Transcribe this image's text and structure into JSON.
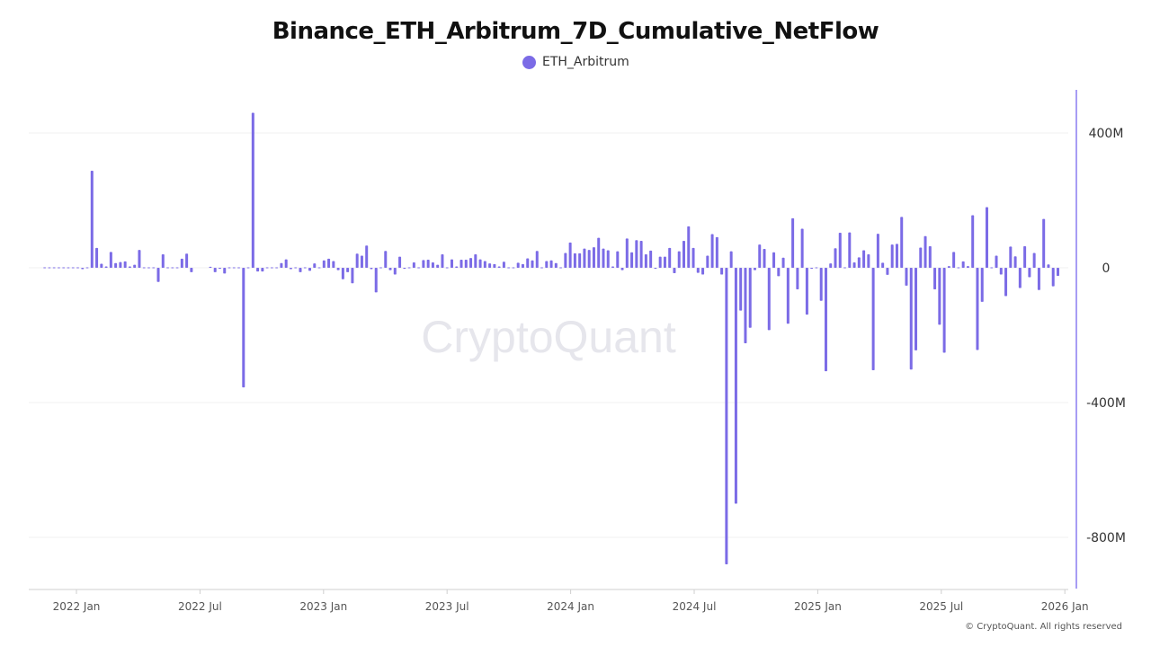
{
  "title": "Binance_ETH_Arbitrum_7D_Cumulative_NetFlow",
  "footer": "© CryptoQuant. All rights reserved",
  "watermark": "CryptoQuant",
  "colors": {
    "series": "#7b6be6",
    "axis": "#8a7cf0",
    "grid": "#f2f2f2"
  },
  "chart_data": {
    "type": "bar",
    "title": "Binance_ETH_Arbitrum_7D_Cumulative_NetFlow",
    "legend": {
      "placement": "top-center",
      "entries": [
        "ETH_Arbitrum"
      ]
    },
    "xlabel": "",
    "ylabel": "",
    "y_unit": "M",
    "ylim": [
      -950,
      530
    ],
    "grid": true,
    "y_axis_side": "right",
    "x_tick_labels": [
      "2022 Jan",
      "2022 Jul",
      "2023 Jan",
      "2023 Jul",
      "2024 Jan",
      "2024 Jul",
      "2025 Jan",
      "2025 Jul",
      "2026 Jan"
    ],
    "y_ticks": [
      400,
      0,
      -400,
      -800
    ],
    "y_tick_labels": [
      "400M",
      "0",
      "-400M",
      "-800M"
    ],
    "x": [
      "2021-11-15",
      "2021-11-22",
      "2021-11-29",
      "2021-12-06",
      "2021-12-13",
      "2021-12-20",
      "2021-12-27",
      "2022-01-03",
      "2022-01-10",
      "2022-01-17",
      "2022-01-24",
      "2022-01-31",
      "2022-02-07",
      "2022-02-14",
      "2022-02-21",
      "2022-02-28",
      "2022-03-07",
      "2022-03-14",
      "2022-03-21",
      "2022-03-28",
      "2022-04-04",
      "2022-04-11",
      "2022-04-18",
      "2022-04-25",
      "2022-05-02",
      "2022-05-09",
      "2022-05-16",
      "2022-05-23",
      "2022-05-30",
      "2022-06-06",
      "2022-06-13",
      "2022-06-20",
      "2022-06-27",
      "2022-07-04",
      "2022-07-11",
      "2022-07-18",
      "2022-07-25",
      "2022-08-01",
      "2022-08-08",
      "2022-08-15",
      "2022-08-22",
      "2022-08-29",
      "2022-09-05",
      "2022-09-12",
      "2022-09-19",
      "2022-09-26",
      "2022-10-03",
      "2022-10-10",
      "2022-10-17",
      "2022-10-24",
      "2022-10-31",
      "2022-11-07",
      "2022-11-14",
      "2022-11-21",
      "2022-11-28",
      "2022-12-05",
      "2022-12-12",
      "2022-12-19",
      "2022-12-26",
      "2023-01-02",
      "2023-01-09",
      "2023-01-16",
      "2023-01-23",
      "2023-01-30",
      "2023-02-06",
      "2023-02-13",
      "2023-02-20",
      "2023-02-27",
      "2023-03-06",
      "2023-03-13",
      "2023-03-20",
      "2023-03-27",
      "2023-04-03",
      "2023-04-10",
      "2023-04-17",
      "2023-04-24",
      "2023-05-01",
      "2023-05-08",
      "2023-05-15",
      "2023-05-22",
      "2023-05-29",
      "2023-06-05",
      "2023-06-12",
      "2023-06-19",
      "2023-06-26",
      "2023-07-03",
      "2023-07-10",
      "2023-07-17",
      "2023-07-24",
      "2023-07-31",
      "2023-08-07",
      "2023-08-14",
      "2023-08-21",
      "2023-08-28",
      "2023-09-04",
      "2023-09-11",
      "2023-09-18",
      "2023-09-25",
      "2023-10-02",
      "2023-10-09",
      "2023-10-16",
      "2023-10-23",
      "2023-10-30",
      "2023-11-06",
      "2023-11-13",
      "2023-11-20",
      "2023-11-27",
      "2023-12-04",
      "2023-12-11",
      "2023-12-18",
      "2023-12-25",
      "2024-01-01",
      "2024-01-08",
      "2024-01-15",
      "2024-01-22",
      "2024-01-29",
      "2024-02-05",
      "2024-02-12",
      "2024-02-19",
      "2024-02-26",
      "2024-03-04",
      "2024-03-11",
      "2024-03-18",
      "2024-03-25",
      "2024-04-01",
      "2024-04-08",
      "2024-04-15",
      "2024-04-22",
      "2024-04-29",
      "2024-05-06",
      "2024-05-13",
      "2024-05-20",
      "2024-05-27",
      "2024-06-03",
      "2024-06-10",
      "2024-06-17",
      "2024-06-24",
      "2024-07-01",
      "2024-07-08",
      "2024-07-15",
      "2024-07-22",
      "2024-07-29",
      "2024-08-05",
      "2024-08-12",
      "2024-08-19",
      "2024-08-26",
      "2024-09-02",
      "2024-09-09",
      "2024-09-16",
      "2024-09-23",
      "2024-09-30",
      "2024-10-07",
      "2024-10-14",
      "2024-10-21",
      "2024-10-28",
      "2024-11-04",
      "2024-11-11",
      "2024-11-18",
      "2024-11-25",
      "2024-12-02",
      "2024-12-09",
      "2024-12-16",
      "2024-12-23",
      "2024-12-30",
      "2025-01-06",
      "2025-01-13",
      "2025-01-20",
      "2025-01-27",
      "2025-02-03",
      "2025-02-10",
      "2025-02-17",
      "2025-02-24",
      "2025-03-03",
      "2025-03-10",
      "2025-03-17",
      "2025-03-24",
      "2025-03-31",
      "2025-04-07",
      "2025-04-14",
      "2025-04-21",
      "2025-04-28",
      "2025-05-05",
      "2025-05-12",
      "2025-05-19",
      "2025-05-26",
      "2025-06-02",
      "2025-06-09",
      "2025-06-16",
      "2025-06-23",
      "2025-06-30",
      "2025-07-07",
      "2025-07-14",
      "2025-07-21",
      "2025-07-28",
      "2025-08-04",
      "2025-08-11",
      "2025-08-18",
      "2025-08-25",
      "2025-09-01",
      "2025-09-08",
      "2025-09-15",
      "2025-09-22",
      "2025-09-29",
      "2025-10-06",
      "2025-10-13",
      "2025-10-20",
      "2025-10-27",
      "2025-11-03",
      "2025-11-10",
      "2025-11-17",
      "2025-11-24",
      "2025-12-01",
      "2025-12-08",
      "2025-12-15",
      "2025-12-22"
    ],
    "series": [
      {
        "name": "ETH_Arbitrum",
        "values": [
          0,
          0,
          0,
          0,
          0,
          0,
          0,
          2,
          -4,
          0,
          288,
          59,
          12,
          4,
          47,
          14,
          17,
          19,
          4,
          9,
          53,
          2,
          0,
          0,
          -42,
          40,
          0,
          -2,
          2,
          27,
          42,
          -13,
          null,
          null,
          null,
          3,
          -13,
          -3,
          -17,
          0,
          0,
          0,
          -355,
          0,
          460,
          -11,
          -11,
          0,
          0,
          2,
          14,
          25,
          -4,
          -2,
          -13,
          0,
          -9,
          13,
          0,
          22,
          27,
          20,
          -7,
          -34,
          -13,
          -46,
          42,
          36,
          66,
          -4,
          -73,
          0,
          50,
          -7,
          -20,
          33,
          -3,
          2,
          16,
          -2,
          23,
          24,
          16,
          9,
          40,
          0,
          25,
          4,
          24,
          24,
          29,
          40,
          25,
          20,
          13,
          11,
          4,
          18,
          0,
          0,
          15,
          11,
          28,
          22,
          50,
          0,
          20,
          22,
          14,
          0,
          44,
          75,
          43,
          43,
          57,
          53,
          61,
          89,
          57,
          52,
          4,
          49,
          -7,
          87,
          46,
          82,
          80,
          40,
          51,
          -3,
          33,
          33,
          59,
          -16,
          49,
          80,
          123,
          59,
          -15,
          -20,
          36,
          100,
          91,
          -20,
          -880,
          49,
          -700,
          -127,
          -224,
          -178,
          -7,
          69,
          56,
          -185,
          46,
          -25,
          30,
          -166,
          147,
          -64,
          116,
          -139,
          -3,
          -2,
          -98,
          -307,
          13,
          58,
          104,
          0,
          105,
          16,
          31,
          52,
          40,
          -304,
          101,
          15,
          -21,
          69,
          71,
          151,
          -53,
          -302,
          -245,
          60,
          94,
          64,
          -64,
          -169,
          -252,
          5,
          47,
          -2,
          19,
          5,
          156,
          -244,
          -101,
          180,
          -1,
          36,
          -20,
          -84,
          63,
          34,
          -60,
          64,
          -28,
          44,
          -66,
          145,
          10,
          -55,
          -24
        ]
      }
    ]
  }
}
